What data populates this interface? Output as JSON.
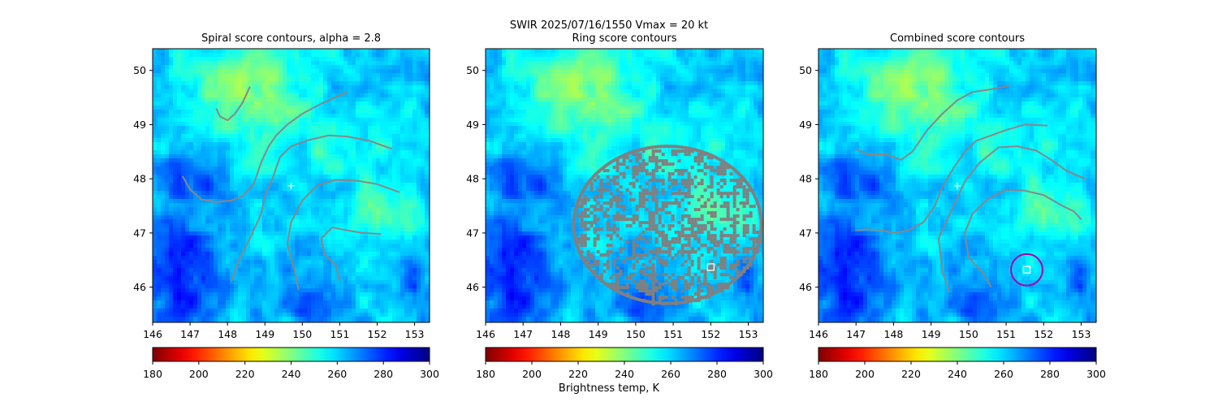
{
  "figure": {
    "suptitle": "SWIR  2025/07/16/1550    Vmax = 20 kt",
    "colorbar_label": "Brightness temp, K"
  },
  "chart_data": [
    {
      "type": "heatmap",
      "title": "Spiral score contours, alpha =  2.8",
      "xlim": [
        146,
        153.4
      ],
      "ylim": [
        45.35,
        50.4
      ],
      "xticks": [
        146,
        147,
        148,
        149,
        150,
        151,
        152,
        153
      ],
      "yticks": [
        46,
        47,
        48,
        49,
        50
      ],
      "colorbar": {
        "cmap": "jet_r",
        "range": [
          180,
          300
        ],
        "ticks": [
          180,
          200,
          220,
          240,
          260,
          280,
          300
        ]
      },
      "markers": [
        {
          "kind": "plus",
          "color": "#ffffff",
          "x": 149.7,
          "y": 47.87
        }
      ],
      "contours": [
        {
          "color": "#888888",
          "points": [
            [
              147.7,
              49.3
            ],
            [
              147.8,
              49.15
            ],
            [
              148.0,
              49.08
            ],
            [
              148.2,
              49.2
            ],
            [
              148.4,
              49.4
            ],
            [
              148.6,
              49.7
            ]
          ]
        },
        {
          "color": "#888888",
          "points": [
            [
              146.8,
              48.05
            ],
            [
              147.0,
              47.8
            ],
            [
              147.3,
              47.62
            ],
            [
              147.7,
              47.57
            ],
            [
              148.1,
              47.6
            ],
            [
              148.4,
              47.68
            ],
            [
              148.7,
              47.9
            ],
            [
              148.9,
              48.3
            ],
            [
              149.1,
              48.6
            ],
            [
              149.3,
              48.8
            ],
            [
              149.6,
              49.0
            ],
            [
              150.0,
              49.2
            ],
            [
              150.4,
              49.35
            ],
            [
              150.8,
              49.48
            ],
            [
              151.2,
              49.6
            ]
          ]
        },
        {
          "color": "#888888",
          "points": [
            [
              148.1,
              46.1
            ],
            [
              148.3,
              46.5
            ],
            [
              148.6,
              46.9
            ],
            [
              148.9,
              47.35
            ],
            [
              149.0,
              47.7
            ],
            [
              149.2,
              48.0
            ],
            [
              149.4,
              48.4
            ],
            [
              149.7,
              48.6
            ],
            [
              150.2,
              48.72
            ],
            [
              150.7,
              48.8
            ],
            [
              151.2,
              48.78
            ],
            [
              151.8,
              48.7
            ],
            [
              152.4,
              48.55
            ]
          ]
        },
        {
          "color": "#888888",
          "points": [
            [
              149.9,
              45.95
            ],
            [
              149.8,
              46.3
            ],
            [
              149.6,
              46.8
            ],
            [
              149.7,
              47.2
            ],
            [
              150.0,
              47.6
            ],
            [
              150.4,
              47.88
            ],
            [
              150.9,
              47.98
            ],
            [
              151.5,
              47.96
            ],
            [
              152.0,
              47.9
            ],
            [
              152.6,
              47.75
            ]
          ]
        },
        {
          "color": "#888888",
          "points": [
            [
              151.0,
              46.1
            ],
            [
              150.9,
              46.4
            ],
            [
              150.6,
              46.6
            ],
            [
              150.5,
              46.9
            ],
            [
              150.8,
              47.1
            ],
            [
              151.2,
              47.05
            ],
            [
              151.6,
              47.0
            ],
            [
              152.1,
              46.98
            ]
          ]
        }
      ]
    },
    {
      "type": "heatmap",
      "title": "Ring score contours",
      "xlim": [
        146,
        153.4
      ],
      "ylim": [
        45.35,
        50.4
      ],
      "xticks": [
        146,
        147,
        148,
        149,
        150,
        151,
        152,
        153
      ],
      "yticks": [
        46,
        47,
        48,
        49,
        50
      ],
      "colorbar": {
        "cmap": "jet_r",
        "range": [
          180,
          300
        ],
        "ticks": [
          180,
          200,
          220,
          240,
          260,
          280,
          300
        ]
      },
      "markers": [
        {
          "kind": "square",
          "color": "#ffffff",
          "x": 152.0,
          "y": 46.37
        }
      ],
      "ring_region": {
        "color": "#808080",
        "cx": 150.85,
        "cy": 47.15,
        "rx": 2.5,
        "ry": 1.45
      },
      "contours": []
    },
    {
      "type": "heatmap",
      "title": "Combined score contours",
      "xlim": [
        146,
        153.4
      ],
      "ylim": [
        45.35,
        50.4
      ],
      "xticks": [
        146,
        147,
        148,
        149,
        150,
        151,
        152,
        153
      ],
      "yticks": [
        46,
        47,
        48,
        49,
        50
      ],
      "colorbar": {
        "cmap": "jet_r",
        "range": [
          180,
          300
        ],
        "ticks": [
          180,
          200,
          220,
          240,
          260,
          280,
          300
        ]
      },
      "markers": [
        {
          "kind": "plus",
          "color": "#ffffff",
          "x": 149.7,
          "y": 47.87
        },
        {
          "kind": "square",
          "color": "#ffffff",
          "x": 151.55,
          "y": 46.32
        },
        {
          "kind": "circle",
          "color": "#aa00aa",
          "x": 151.55,
          "y": 46.32,
          "r_deg": 0.42
        }
      ],
      "contours": [
        {
          "color": "#888888",
          "points": [
            [
              147.0,
              47.05
            ],
            [
              147.3,
              47.07
            ],
            [
              147.7,
              47.05
            ],
            [
              148.0,
              47.0
            ],
            [
              148.4,
              47.05
            ],
            [
              148.8,
              47.2
            ],
            [
              149.1,
              47.5
            ],
            [
              149.3,
              47.85
            ],
            [
              149.6,
              48.2
            ],
            [
              149.9,
              48.5
            ],
            [
              150.2,
              48.7
            ],
            [
              150.6,
              48.8
            ],
            [
              151.0,
              48.9
            ],
            [
              151.5,
              49.0
            ],
            [
              152.1,
              48.98
            ]
          ]
        },
        {
          "color": "#888888",
          "points": [
            [
              147.0,
              48.55
            ],
            [
              147.3,
              48.45
            ],
            [
              147.8,
              48.45
            ],
            [
              148.2,
              48.35
            ],
            [
              148.5,
              48.5
            ],
            [
              148.9,
              48.9
            ],
            [
              149.3,
              49.2
            ],
            [
              149.7,
              49.45
            ],
            [
              150.1,
              49.6
            ],
            [
              150.6,
              49.65
            ],
            [
              151.1,
              49.72
            ]
          ]
        },
        {
          "color": "#888888",
          "points": [
            [
              149.5,
              45.9
            ],
            [
              149.3,
              46.3
            ],
            [
              149.2,
              46.9
            ],
            [
              149.6,
              47.5
            ],
            [
              149.9,
              47.95
            ],
            [
              150.3,
              48.3
            ],
            [
              150.8,
              48.58
            ],
            [
              151.3,
              48.6
            ],
            [
              151.8,
              48.52
            ],
            [
              152.2,
              48.35
            ],
            [
              152.6,
              48.15
            ],
            [
              153.1,
              48.0
            ]
          ]
        },
        {
          "color": "#888888",
          "points": [
            [
              150.6,
              46.0
            ],
            [
              150.4,
              46.25
            ],
            [
              150.0,
              46.55
            ],
            [
              149.9,
              47.0
            ],
            [
              150.1,
              47.35
            ],
            [
              150.5,
              47.62
            ],
            [
              151.0,
              47.8
            ],
            [
              151.5,
              47.78
            ],
            [
              152.0,
              47.7
            ],
            [
              152.5,
              47.5
            ],
            [
              152.8,
              47.4
            ],
            [
              153.0,
              47.25
            ]
          ]
        }
      ]
    }
  ]
}
